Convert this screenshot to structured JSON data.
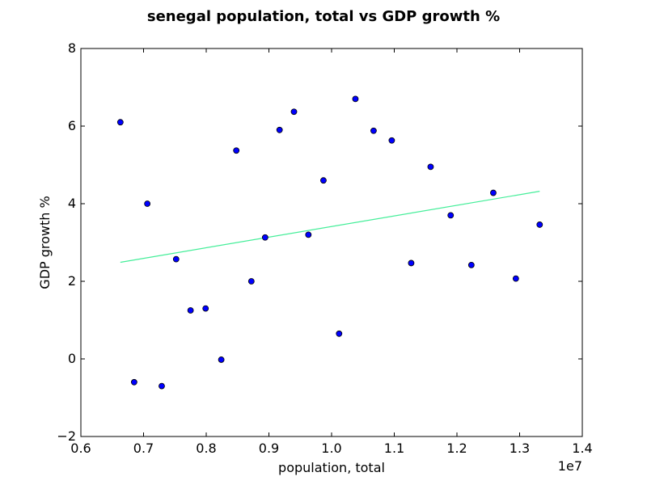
{
  "chart_data": {
    "type": "scatter",
    "title": "senegal population, total vs GDP growth %",
    "xlabel": "population, total",
    "ylabel": "GDP growth %",
    "x_scale_label": "1e7",
    "xlim": [
      0.6,
      1.4
    ],
    "ylim": [
      -2,
      8
    ],
    "x_ticks": [
      0.6,
      0.7,
      0.8,
      0.9,
      1.0,
      1.1,
      1.2,
      1.3,
      1.4
    ],
    "y_ticks": [
      -2,
      0,
      2,
      4,
      6,
      8
    ],
    "x_tick_labels": [
      "0.6",
      "0.7",
      "0.8",
      "0.9",
      "1.0",
      "1.1",
      "1.2",
      "1.3",
      "1.4"
    ],
    "y_tick_labels": [
      "−2",
      "0",
      "2",
      "4",
      "6",
      "8"
    ],
    "grid": false,
    "series": [
      {
        "type": "scatter",
        "color": "#0000ff",
        "points": [
          {
            "x": 0.663,
            "y": 6.1
          },
          {
            "x": 0.685,
            "y": -0.6
          },
          {
            "x": 0.706,
            "y": 4.0
          },
          {
            "x": 0.729,
            "y": -0.7
          },
          {
            "x": 0.752,
            "y": 2.57
          },
          {
            "x": 0.775,
            "y": 1.25
          },
          {
            "x": 0.799,
            "y": 1.3
          },
          {
            "x": 0.824,
            "y": -0.02
          },
          {
            "x": 0.848,
            "y": 5.37
          },
          {
            "x": 0.872,
            "y": 2.0
          },
          {
            "x": 0.894,
            "y": 3.13
          },
          {
            "x": 0.917,
            "y": 5.9
          },
          {
            "x": 0.94,
            "y": 6.37
          },
          {
            "x": 0.963,
            "y": 3.2
          },
          {
            "x": 0.987,
            "y": 4.6
          },
          {
            "x": 1.012,
            "y": 0.65
          },
          {
            "x": 1.038,
            "y": 6.7
          },
          {
            "x": 1.067,
            "y": 5.88
          },
          {
            "x": 1.096,
            "y": 5.63
          },
          {
            "x": 1.127,
            "y": 2.47
          },
          {
            "x": 1.158,
            "y": 4.95
          },
          {
            "x": 1.19,
            "y": 3.7
          },
          {
            "x": 1.223,
            "y": 2.42
          },
          {
            "x": 1.258,
            "y": 4.28
          },
          {
            "x": 1.294,
            "y": 2.07
          },
          {
            "x": 1.332,
            "y": 3.46
          }
        ]
      },
      {
        "type": "line",
        "color": "#44ee99",
        "points": [
          {
            "x": 0.663,
            "y": 2.49
          },
          {
            "x": 1.332,
            "y": 4.32
          }
        ]
      }
    ]
  }
}
